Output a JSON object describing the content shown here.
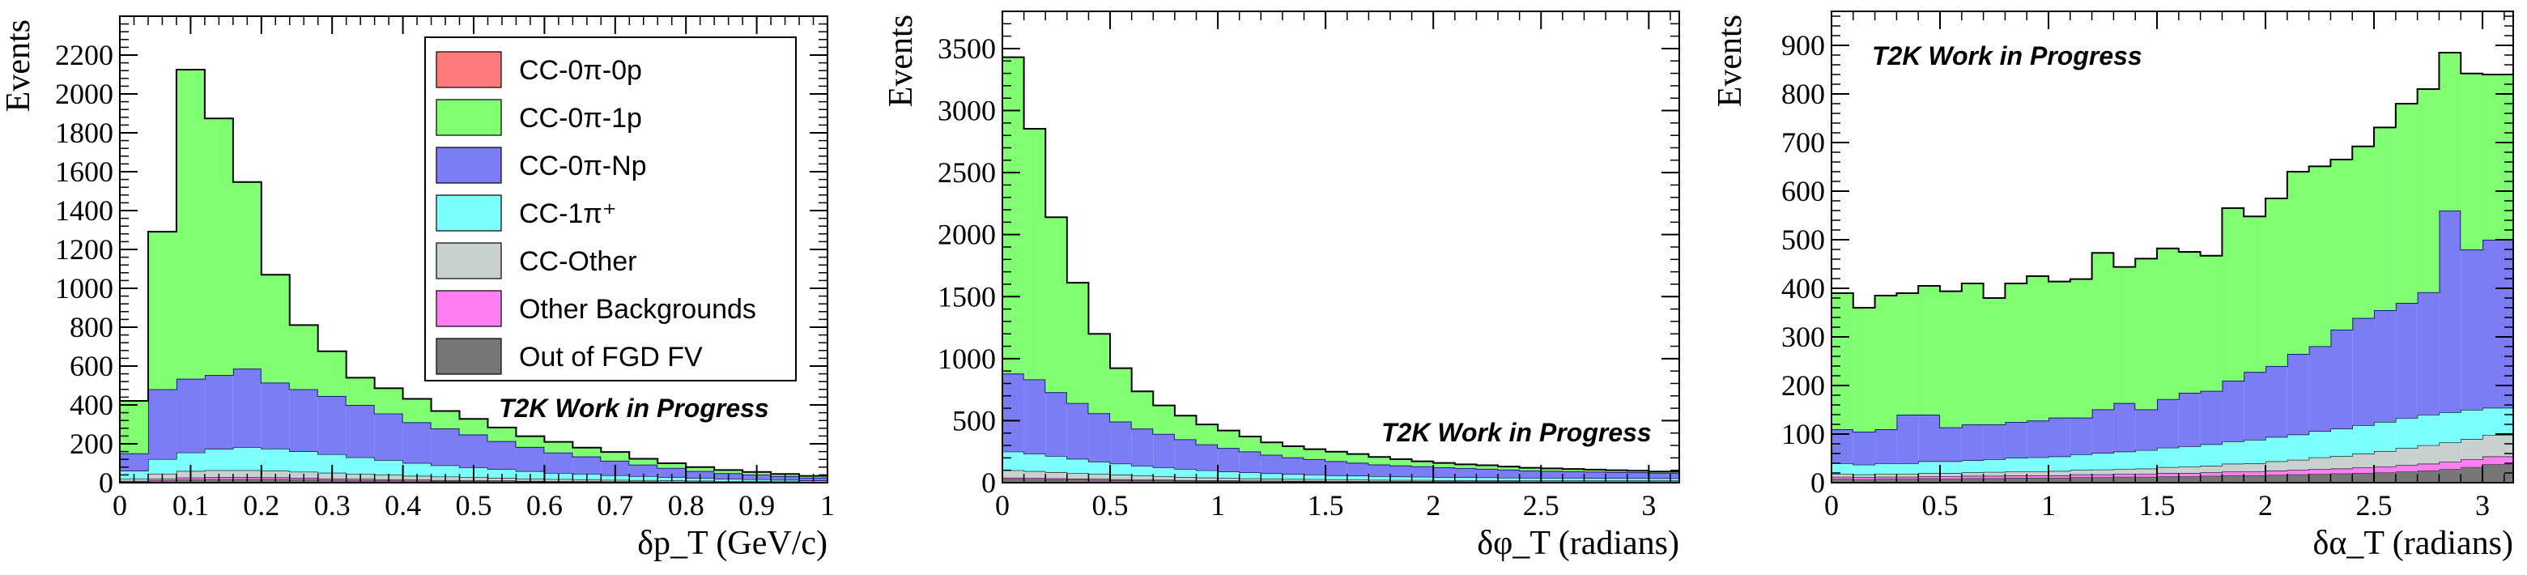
{
  "legend": [
    {
      "key": "cc0pi0p",
      "label": "CC-0π-0p",
      "color": "#ff7a7a"
    },
    {
      "key": "cc0pi1p",
      "label": "CC-0π-1p",
      "color": "#80ff73"
    },
    {
      "key": "cc0piNp",
      "label": "CC-0π-Np",
      "color": "#7c7cf4"
    },
    {
      "key": "cc1pi",
      "label": "CC-1π⁺",
      "color": "#7dffff"
    },
    {
      "key": "ccother",
      "label": "CC-Other",
      "color": "#c7d2d0"
    },
    {
      "key": "otherbkg",
      "label": "Other Backgrounds",
      "color": "#ff7ff2"
    },
    {
      "key": "outfgd",
      "label": "Out of FGD FV",
      "color": "#777777"
    }
  ],
  "chart_data": [
    {
      "type": "bar",
      "stacked": true,
      "ylabel": "Events",
      "xlabel": "δp_T (GeV/c)",
      "xlim": [
        0,
        1
      ],
      "ylim": [
        0,
        2400
      ],
      "xticks": [
        "0",
        "0.1",
        "0.2",
        "0.3",
        "0.4",
        "0.5",
        "0.6",
        "0.7",
        "0.8",
        "0.9",
        "1"
      ],
      "yticks": [
        "0",
        "200",
        "400",
        "600",
        "800",
        "1000",
        "1200",
        "1400",
        "1600",
        "1800",
        "2000",
        "2200"
      ],
      "annotation": "T2K Work in Progress",
      "legend_position": "top-right",
      "bin_edges": [
        0,
        0.04,
        0.08,
        0.12,
        0.16,
        0.2,
        0.24,
        0.28,
        0.32,
        0.36,
        0.4,
        0.44,
        0.48,
        0.52,
        0.56,
        0.6,
        0.64,
        0.68,
        0.72,
        0.76,
        0.8,
        0.84,
        0.88,
        0.92,
        0.96,
        1.0
      ],
      "series": [
        {
          "key": "outfgd",
          "values": [
            5,
            12,
            16,
            18,
            18,
            18,
            16,
            14,
            13,
            11,
            10,
            9,
            8,
            7,
            6,
            5,
            5,
            4,
            4,
            3,
            3,
            2,
            2,
            2,
            1
          ]
        },
        {
          "key": "otherbkg",
          "values": [
            4,
            8,
            10,
            10,
            10,
            9,
            8,
            7,
            6,
            6,
            5,
            4,
            4,
            4,
            3,
            3,
            3,
            2,
            2,
            2,
            2,
            1,
            1,
            1,
            1
          ]
        },
        {
          "key": "ccother",
          "values": [
            12,
            26,
            34,
            36,
            36,
            34,
            32,
            30,
            26,
            24,
            20,
            18,
            16,
            14,
            12,
            10,
            9,
            8,
            7,
            6,
            5,
            4,
            4,
            3,
            3
          ]
        },
        {
          "key": "cc1pi",
          "values": [
            40,
            75,
            95,
            110,
            118,
            114,
            105,
            95,
            85,
            75,
            66,
            58,
            50,
            44,
            38,
            32,
            28,
            24,
            20,
            17,
            14,
            12,
            10,
            8,
            6
          ]
        },
        {
          "key": "cc0piNp",
          "values": [
            90,
            360,
            380,
            380,
            405,
            340,
            320,
            300,
            270,
            240,
            210,
            190,
            170,
            145,
            125,
            105,
            90,
            75,
            60,
            48,
            36,
            30,
            25,
            20,
            15
          ]
        },
        {
          "key": "cc0pi1p",
          "values": [
            270,
            810,
            1590,
            1320,
            960,
            555,
            330,
            230,
            140,
            130,
            120,
            90,
            80,
            70,
            55,
            55,
            45,
            45,
            30,
            24,
            20,
            16,
            13,
            11,
            9
          ]
        },
        {
          "key": "cc0pi0p",
          "values": [
            0,
            0,
            0,
            0,
            0,
            0,
            0,
            0,
            0,
            0,
            0,
            0,
            0,
            0,
            0,
            0,
            0,
            0,
            0,
            0,
            0,
            0,
            0,
            0,
            0
          ]
        }
      ]
    },
    {
      "type": "bar",
      "stacked": true,
      "ylabel": "Events",
      "xlabel": "δφ_T (radians)",
      "xlim": [
        0,
        3.1416
      ],
      "ylim": [
        0,
        3800
      ],
      "xticks": [
        "0",
        "0.5",
        "1",
        "1.5",
        "2",
        "2.5",
        "3"
      ],
      "yticks": [
        "0",
        "500",
        "1000",
        "1500",
        "2000",
        "2500",
        "3000",
        "3500"
      ],
      "annotation": "T2K Work in Progress",
      "bin_edges": [
        0,
        0.1,
        0.2,
        0.3,
        0.4,
        0.5,
        0.6,
        0.7,
        0.8,
        0.9,
        1.0,
        1.1,
        1.2,
        1.3,
        1.4,
        1.5,
        1.6,
        1.7,
        1.8,
        1.9,
        2.0,
        2.1,
        2.2,
        2.3,
        2.4,
        2.5,
        2.6,
        2.7,
        2.8,
        2.9,
        3.0,
        3.1416
      ],
      "series": [
        {
          "key": "outfgd",
          "values": [
            30,
            28,
            26,
            24,
            22,
            20,
            18,
            17,
            15,
            14,
            13,
            12,
            11,
            10,
            10,
            9,
            9,
            8,
            8,
            8,
            7,
            7,
            7,
            7,
            6,
            6,
            6,
            6,
            6,
            6,
            6
          ]
        },
        {
          "key": "otherbkg",
          "values": [
            10,
            10,
            9,
            8,
            8,
            7,
            6,
            6,
            5,
            5,
            5,
            4,
            4,
            4,
            4,
            3,
            3,
            3,
            3,
            3,
            3,
            3,
            3,
            3,
            3,
            3,
            3,
            3,
            3,
            3,
            3
          ]
        },
        {
          "key": "ccother",
          "values": [
            60,
            55,
            50,
            45,
            40,
            36,
            32,
            28,
            25,
            22,
            20,
            18,
            16,
            15,
            14,
            13,
            12,
            11,
            10,
            10,
            9,
            9,
            9,
            8,
            8,
            8,
            8,
            8,
            8,
            8,
            8
          ]
        },
        {
          "key": "cc1pi",
          "values": [
            150,
            140,
            130,
            115,
            100,
            90,
            80,
            72,
            65,
            58,
            52,
            48,
            44,
            40,
            37,
            34,
            32,
            30,
            28,
            26,
            25,
            24,
            23,
            22,
            21,
            20,
            20,
            19,
            19,
            19,
            18
          ]
        },
        {
          "key": "cc0piNp",
          "values": [
            630,
            600,
            515,
            450,
            390,
            340,
            300,
            270,
            240,
            210,
            190,
            170,
            150,
            135,
            125,
            115,
            105,
            95,
            90,
            85,
            80,
            75,
            70,
            65,
            60,
            58,
            55,
            53,
            50,
            48,
            45
          ]
        },
        {
          "key": "cc0pi1p",
          "values": [
            2550,
            2020,
            1410,
            970,
            640,
            430,
            300,
            230,
            190,
            160,
            140,
            120,
            100,
            90,
            80,
            76,
            70,
            60,
            50,
            40,
            35,
            30,
            28,
            25,
            22,
            20,
            18,
            16,
            14,
            12,
            10
          ]
        },
        {
          "key": "cc0pi0p",
          "values": [
            0,
            0,
            0,
            0,
            0,
            0,
            0,
            0,
            0,
            0,
            0,
            0,
            0,
            0,
            0,
            0,
            0,
            0,
            0,
            0,
            0,
            0,
            0,
            0,
            0,
            0,
            0,
            0,
            0,
            0,
            0
          ]
        }
      ]
    },
    {
      "type": "bar",
      "stacked": true,
      "ylabel": "Events",
      "xlabel": "δα_T (radians)",
      "xlim": [
        0,
        3.1416
      ],
      "ylim": [
        0,
        970
      ],
      "xticks": [
        "0",
        "0.5",
        "1",
        "1.5",
        "2",
        "2.5",
        "3"
      ],
      "yticks": [
        "0",
        "100",
        "200",
        "300",
        "400",
        "500",
        "600",
        "700",
        "800",
        "900"
      ],
      "annotation": "T2K Work in Progress",
      "bin_edges": [
        0,
        0.1,
        0.2,
        0.3,
        0.4,
        0.5,
        0.6,
        0.7,
        0.8,
        0.9,
        1.0,
        1.1,
        1.2,
        1.3,
        1.4,
        1.5,
        1.6,
        1.7,
        1.8,
        1.9,
        2.0,
        2.1,
        2.2,
        2.3,
        2.4,
        2.5,
        2.6,
        2.7,
        2.8,
        2.9,
        3.0,
        3.1416
      ],
      "series": [
        {
          "key": "outfgd",
          "values": [
            8,
            7,
            8,
            8,
            9,
            8,
            9,
            9,
            10,
            10,
            10,
            11,
            11,
            12,
            12,
            13,
            13,
            14,
            15,
            15,
            16,
            17,
            18,
            19,
            20,
            21,
            23,
            25,
            28,
            32,
            38
          ]
        },
        {
          "key": "otherbkg",
          "values": [
            4,
            4,
            4,
            4,
            4,
            5,
            5,
            5,
            5,
            5,
            5,
            6,
            6,
            6,
            6,
            7,
            7,
            7,
            8,
            8,
            9,
            9,
            10,
            10,
            11,
            12,
            13,
            14,
            15,
            16,
            16
          ]
        },
        {
          "key": "ccother",
          "values": [
            6,
            6,
            6,
            6,
            7,
            7,
            7,
            8,
            8,
            8,
            9,
            9,
            10,
            10,
            11,
            12,
            13,
            14,
            16,
            17,
            19,
            21,
            24,
            26,
            29,
            32,
            35,
            38,
            40,
            42,
            44
          ]
        },
        {
          "key": "cc1pi",
          "values": [
            22,
            20,
            22,
            22,
            24,
            24,
            25,
            26,
            28,
            29,
            30,
            32,
            34,
            36,
            38,
            40,
            42,
            44,
            46,
            48,
            50,
            52,
            54,
            56,
            58,
            60,
            62,
            63,
            62,
            60,
            56
          ]
        },
        {
          "key": "cc0piNp",
          "values": [
            70,
            68,
            70,
            100,
            96,
            70,
            74,
            72,
            74,
            76,
            80,
            76,
            90,
            100,
            84,
            100,
            110,
            110,
            125,
            140,
            146,
            166,
            175,
            204,
            221,
            230,
            237,
            252,
            415,
            330,
            346
          ]
        },
        {
          "key": "cc0pi1p",
          "values": [
            280,
            255,
            275,
            250,
            265,
            280,
            290,
            260,
            285,
            297,
            280,
            285,
            322,
            280,
            310,
            310,
            290,
            278,
            355,
            320,
            345,
            375,
            370,
            350,
            353,
            376,
            410,
            418,
            325,
            362,
            340
          ]
        },
        {
          "key": "cc0pi0p",
          "values": [
            0,
            0,
            0,
            0,
            0,
            0,
            0,
            0,
            0,
            0,
            0,
            0,
            0,
            0,
            0,
            0,
            0,
            0,
            0,
            0,
            0,
            0,
            0,
            0,
            0,
            0,
            0,
            0,
            0,
            0,
            0
          ]
        }
      ]
    }
  ]
}
